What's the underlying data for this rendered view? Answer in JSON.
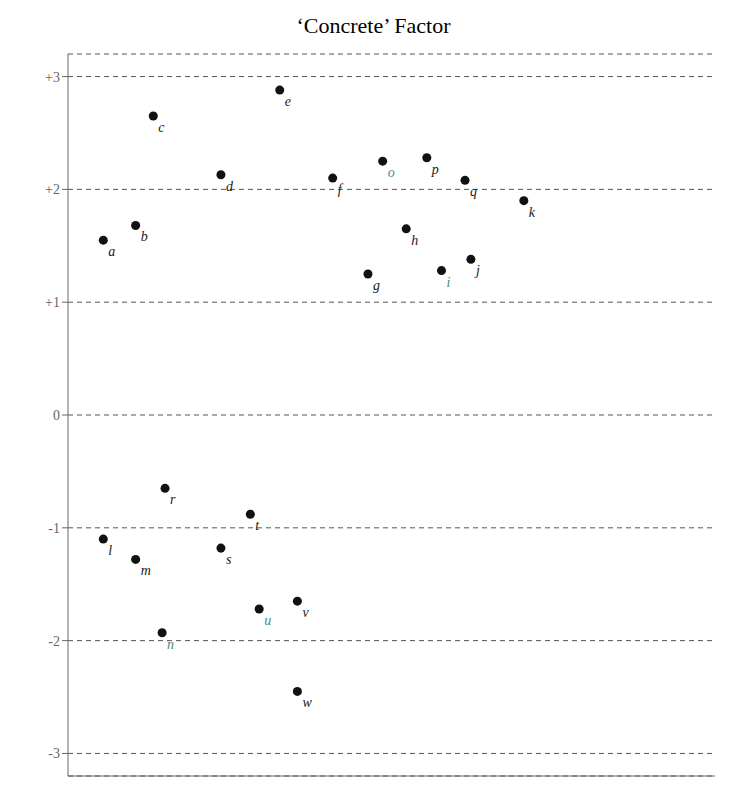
{
  "chart_data": {
    "type": "scatter",
    "title": "‘Concrete’ Factor",
    "x": [
      1.2,
      2.3,
      2.9,
      5.2,
      7.2,
      9.0,
      10.2,
      11.5,
      12.7,
      13.7,
      15.5,
      1.2,
      2.3,
      3.2,
      10.7,
      12.2,
      13.5,
      3.3,
      5.2,
      6.2,
      6.5,
      7.8,
      7.8
    ],
    "values": [
      1.55,
      1.68,
      2.65,
      2.13,
      2.88,
      2.1,
      1.25,
      1.65,
      1.28,
      1.38,
      1.9,
      -1.1,
      -1.28,
      -1.93,
      2.25,
      2.28,
      2.08,
      -0.65,
      -1.18,
      -0.88,
      -1.72,
      -1.65,
      -2.45
    ],
    "color": "#111111",
    "xlim": [
      0,
      22
    ],
    "ylim": [
      -3.2,
      3.2
    ],
    "yticks": [
      -3,
      -2,
      -1,
      0,
      {
        "value": 1,
        "label": "+1"
      },
      {
        "value": 2,
        "label": "+2"
      },
      {
        "value": 3,
        "label": "+3"
      }
    ],
    "grid": true,
    "tick_labels": "y",
    "annotations": [
      {
        "text": "a",
        "x": 1.2,
        "y": 1.55,
        "color": "#1a1a1a"
      },
      {
        "text": "b",
        "x": 2.3,
        "y": 1.68,
        "color": "#1a1a1a"
      },
      {
        "text": "c",
        "x": 2.9,
        "y": 2.65,
        "color": "#1a1a1a"
      },
      {
        "text": "d",
        "x": 5.2,
        "y": 2.13,
        "color": "#1a1a1a"
      },
      {
        "text": "e",
        "x": 7.2,
        "y": 2.88,
        "color": "#1a1a1a"
      },
      {
        "text": "f",
        "x": 9.0,
        "y": 2.1,
        "color": "#1a1a1a"
      },
      {
        "text": "g",
        "x": 10.2,
        "y": 1.25,
        "color": "#1a1a1a"
      },
      {
        "text": "h",
        "x": 11.5,
        "y": 1.65,
        "color": "#1a1a1a"
      },
      {
        "text": "i",
        "x": 12.7,
        "y": 1.28,
        "color": "#4a8a7a"
      },
      {
        "text": "j",
        "x": 13.7,
        "y": 1.38,
        "color": "#1a1a1a"
      },
      {
        "text": "k",
        "x": 15.5,
        "y": 1.9,
        "color": "#1a1a1a"
      },
      {
        "text": "l",
        "x": 1.2,
        "y": -1.1,
        "color": "#1a1a1a"
      },
      {
        "text": "m",
        "x": 2.3,
        "y": -1.28,
        "color": "#1a1a1a"
      },
      {
        "text": "n",
        "x": 3.2,
        "y": -1.93,
        "color": "#4a8a7a"
      },
      {
        "text": "o",
        "x": 10.7,
        "y": 2.25,
        "color": "#4a8a7a"
      },
      {
        "text": "p",
        "x": 12.2,
        "y": 2.28,
        "color": "#1a1a1a"
      },
      {
        "text": "q",
        "x": 13.5,
        "y": 2.08,
        "color": "#1a1a1a"
      },
      {
        "text": "r",
        "x": 3.3,
        "y": -0.65,
        "color": "#1a1a1a"
      },
      {
        "text": "s",
        "x": 5.2,
        "y": -1.18,
        "color": "#1a1a1a"
      },
      {
        "text": "t",
        "x": 6.2,
        "y": -0.88,
        "color": "#1a1a1a"
      },
      {
        "text": "u",
        "x": 6.5,
        "y": -1.72,
        "color": "#4a8a7a"
      },
      {
        "text": "v",
        "x": 7.8,
        "y": -1.65,
        "color": "#1a1a1a"
      },
      {
        "text": "w",
        "x": 7.8,
        "y": -2.45,
        "color": "#1a1a1a"
      }
    ]
  }
}
